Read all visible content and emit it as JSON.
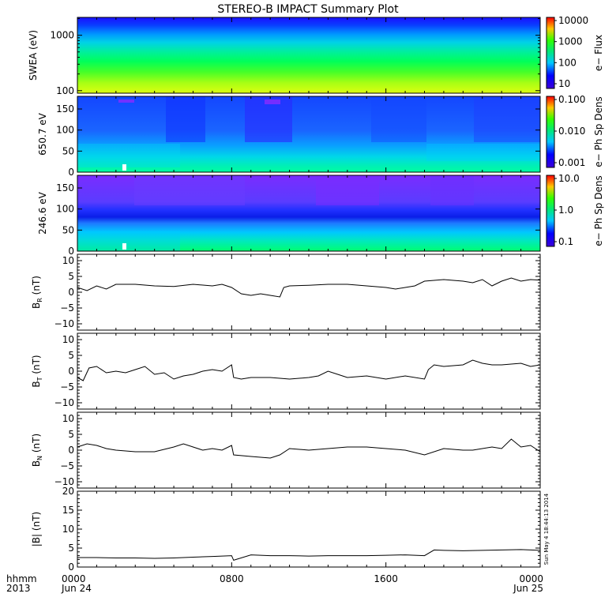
{
  "title": "STEREO-B IMPACT Summary Plot",
  "footer": {
    "hhmm": "hhmm",
    "year": "2013",
    "start_date": "Jun 24",
    "end_date": "Jun 25",
    "x_ticks": [
      "0000",
      "0800",
      "1600",
      "0000"
    ],
    "stamp": "Sun May  4 18:44:13 2014"
  },
  "chart_data": [
    {
      "type": "heatmap",
      "ylabel": "SWEA (eV)",
      "ytick_labels": [
        "1000",
        "100"
      ],
      "yscale": "log",
      "colorbar": {
        "label": "e− Flux",
        "tick_labels": [
          "10000",
          "1000",
          "100",
          "10"
        ],
        "scale": "log"
      }
    },
    {
      "type": "heatmap",
      "ylabel": "650.7 eV",
      "ylim": [
        0,
        180
      ],
      "ytick_labels": [
        "150",
        "100",
        "50",
        "0"
      ],
      "colorbar": {
        "label": "e− Ph Sp Dens",
        "tick_labels": [
          "0.100",
          "0.010",
          "0.001"
        ],
        "scale": "log"
      }
    },
    {
      "type": "heatmap",
      "ylabel": "246.6 eV",
      "ylim": [
        0,
        180
      ],
      "ytick_labels": [
        "150",
        "100",
        "50",
        "0"
      ],
      "colorbar": {
        "label": "e− Ph Sp Dens",
        "tick_labels": [
          "10.0",
          "1.0",
          "0.1"
        ],
        "scale": "log"
      }
    },
    {
      "type": "line",
      "ylabel": "B",
      "ylabel_sub": "R",
      "ylabel_unit": " (nT)",
      "ylim": [
        -12,
        12
      ],
      "ytick_labels": [
        "10",
        "5",
        "0",
        "−5",
        "−10"
      ],
      "x": [
        0,
        0.5,
        1,
        1.5,
        2,
        3,
        4,
        5,
        6,
        7,
        7.5,
        8,
        8.5,
        9,
        9.5,
        10,
        10.5,
        10.7,
        11,
        12,
        13,
        14,
        15,
        16,
        16.5,
        17,
        17.5,
        18,
        19,
        20,
        20.5,
        21,
        21.5,
        22,
        22.5,
        23,
        23.5,
        24
      ],
      "y": [
        1.5,
        0.5,
        2.0,
        1.0,
        2.5,
        2.5,
        2.0,
        1.8,
        2.5,
        2.0,
        2.5,
        1.5,
        -0.5,
        -1.0,
        -0.5,
        -1.0,
        -1.5,
        1.5,
        2.0,
        2.2,
        2.5,
        2.5,
        2.0,
        1.5,
        1.0,
        1.5,
        2.0,
        3.5,
        4.0,
        3.5,
        3.0,
        4.0,
        2.0,
        3.5,
        4.5,
        3.5,
        4.0,
        3.8
      ]
    },
    {
      "type": "line",
      "ylabel": "B",
      "ylabel_sub": "T",
      "ylabel_unit": " (nT)",
      "ylim": [
        -12,
        12
      ],
      "ytick_labels": [
        "10",
        "5",
        "0",
        "−5",
        "−10"
      ],
      "x": [
        0,
        0.3,
        0.6,
        1,
        1.5,
        2,
        2.5,
        3,
        3.5,
        4,
        4.5,
        5,
        5.5,
        6,
        6.5,
        7,
        7.5,
        8,
        8.1,
        8.5,
        9,
        10,
        11,
        12,
        12.5,
        13,
        13.5,
        14,
        15,
        16,
        17,
        18,
        18.2,
        18.5,
        19,
        20,
        20.5,
        21,
        21.5,
        22,
        23,
        23.5,
        24
      ],
      "y": [
        -2.0,
        -3.0,
        1.0,
        1.5,
        -0.5,
        0.0,
        -0.5,
        0.5,
        1.5,
        -1.0,
        -0.5,
        -2.5,
        -1.5,
        -1.0,
        0.0,
        0.5,
        0.0,
        2.0,
        -2.0,
        -2.5,
        -2.0,
        -2.0,
        -2.5,
        -2.0,
        -1.5,
        0.0,
        -1.0,
        -2.0,
        -1.5,
        -2.5,
        -1.5,
        -2.5,
        0.5,
        2.0,
        1.5,
        2.0,
        3.5,
        2.5,
        2.0,
        2.0,
        2.5,
        1.5,
        2.0
      ]
    },
    {
      "type": "line",
      "ylabel": "B",
      "ylabel_sub": "N",
      "ylabel_unit": " (nT)",
      "ylim": [
        -12,
        12
      ],
      "ytick_labels": [
        "10",
        "5",
        "0",
        "−5",
        "−10"
      ],
      "x": [
        0,
        0.5,
        1,
        1.5,
        2,
        3,
        4,
        5,
        5.5,
        6,
        6.5,
        7,
        7.5,
        8,
        8.1,
        9,
        10,
        10.5,
        11,
        12,
        13,
        14,
        15,
        16,
        17,
        18,
        19,
        20,
        20.5,
        21,
        21.5,
        22,
        22.5,
        23,
        23.5,
        24
      ],
      "y": [
        1.0,
        2.0,
        1.5,
        0.5,
        0.0,
        -0.5,
        -0.5,
        1.0,
        2.0,
        1.0,
        0.0,
        0.5,
        0.0,
        1.5,
        -1.5,
        -2.0,
        -2.5,
        -1.5,
        0.5,
        0.0,
        0.5,
        1.0,
        1.0,
        0.5,
        0.0,
        -1.5,
        0.5,
        0.0,
        0.0,
        0.5,
        1.0,
        0.5,
        3.5,
        1.0,
        1.5,
        -0.5
      ]
    },
    {
      "type": "line",
      "ylabel": "|B| (nT)",
      "ylim": [
        0,
        20
      ],
      "ytick_labels": [
        "20",
        "15",
        "10",
        "5",
        "0"
      ],
      "x": [
        0,
        1,
        2,
        3,
        4,
        5,
        6,
        7,
        8,
        8.1,
        9,
        10,
        11,
        12,
        13,
        14,
        15,
        16,
        17,
        18,
        18.5,
        19,
        20,
        21,
        22,
        23,
        24
      ],
      "y": [
        2.5,
        2.5,
        2.4,
        2.4,
        2.3,
        2.4,
        2.6,
        2.8,
        3.0,
        1.8,
        3.2,
        3.0,
        3.0,
        2.9,
        3.0,
        3.0,
        3.0,
        3.1,
        3.2,
        3.0,
        4.5,
        4.4,
        4.3,
        4.4,
        4.5,
        4.6,
        4.4
      ]
    }
  ]
}
